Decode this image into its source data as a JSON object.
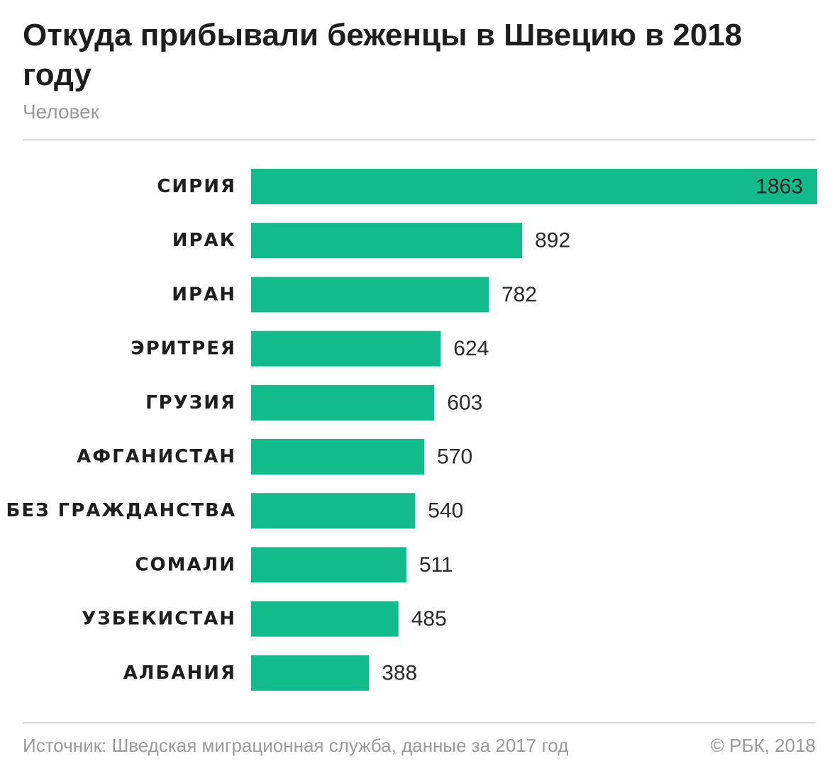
{
  "header": {
    "title": "Откуда прибывали беженцы в Швецию в 2018 году",
    "subtitle": "Человек"
  },
  "footer": {
    "source": "Источник: Шведская миграционная служба, данные за 2017 год",
    "copyright": "© РБК, 2018"
  },
  "colors": {
    "bar": "#12bc8a",
    "text": "#1e1e1e",
    "muted": "#9a9a9a"
  },
  "chart_data": {
    "type": "bar",
    "orientation": "horizontal",
    "title": "Откуда прибывали беженцы в Швецию в 2018 году",
    "ylabel": "Человек",
    "categories": [
      "СИРИЯ",
      "ИРАК",
      "ИРАН",
      "ЭРИТРЕЯ",
      "ГРУЗИЯ",
      "АФГАНИСТАН",
      "БЕЗ ГРАЖДАНСТВА",
      "СОМАЛИ",
      "УЗБЕКИСТАН",
      "АЛБАНИЯ"
    ],
    "values": [
      1863,
      892,
      782,
      624,
      603,
      570,
      540,
      511,
      485,
      388
    ],
    "xlim": [
      0,
      1863
    ],
    "grid": false,
    "legend": "none"
  }
}
